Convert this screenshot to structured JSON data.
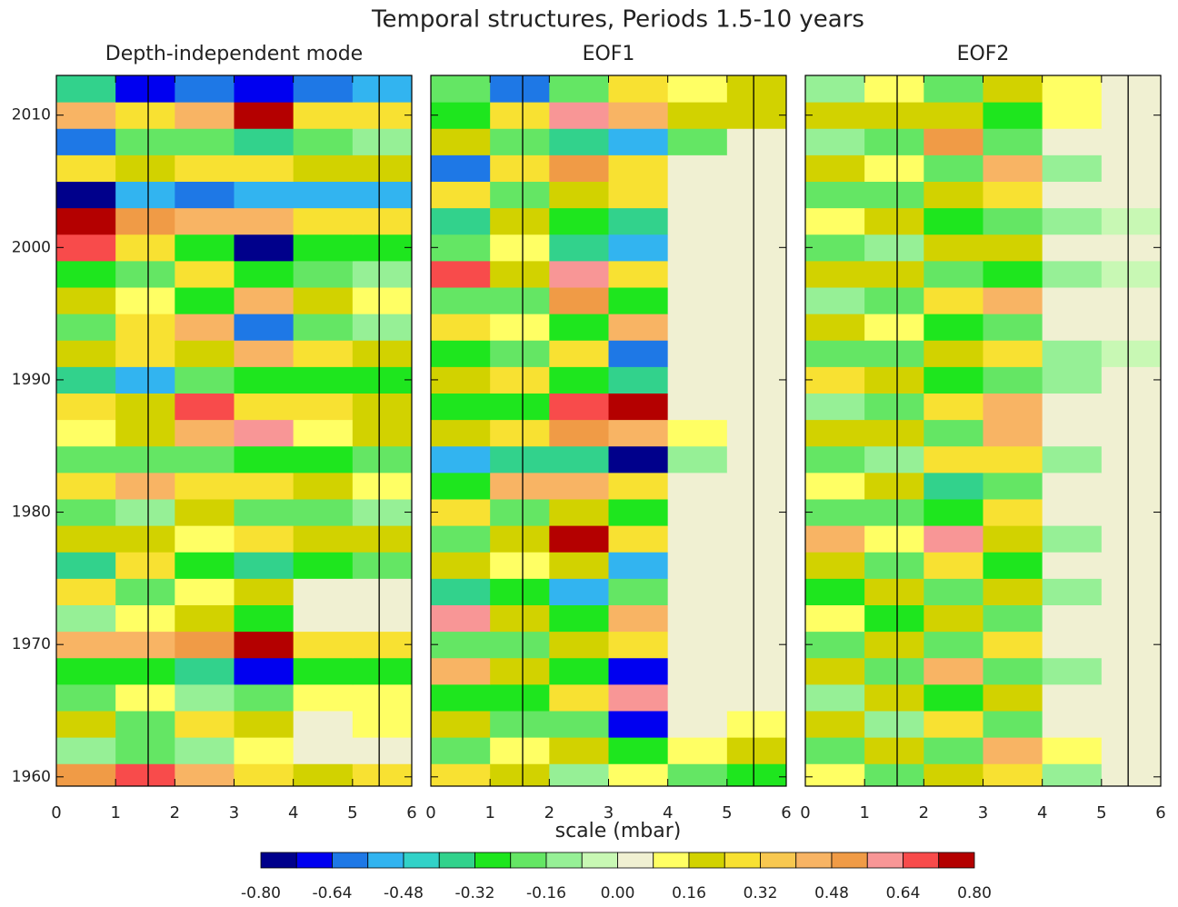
{
  "title": "Temporal structures, Periods 1.5-10 years",
  "xlabel": "scale (mbar)",
  "reference_lines": [
    1.55,
    5.45
  ],
  "colorbar": {
    "levels": [
      -0.8,
      -0.72,
      -0.64,
      -0.56,
      -0.48,
      -0.4,
      -0.32,
      -0.24,
      -0.16,
      -0.08,
      0,
      0.08,
      0.16,
      0.24,
      0.32,
      0.4,
      0.48,
      0.56,
      0.64,
      0.72,
      0.8
    ],
    "colors": [
      "#00008b",
      "#0000f0",
      "#1e78e6",
      "#32b4f0",
      "#32d2c8",
      "#32d28c",
      "#1ee61e",
      "#64e664",
      "#96f096",
      "#c8f8b4",
      "#f0f0d2",
      "#ffff64",
      "#d2d200",
      "#f8e132",
      "#f8c850",
      "#f8b464",
      "#f09b46",
      "#f89696",
      "#f84b4b",
      "#b40000"
    ],
    "ticks": [
      {
        "value": -0.8,
        "label": "-0.80"
      },
      {
        "value": -0.64,
        "label": "-0.64"
      },
      {
        "value": -0.48,
        "label": "-0.48"
      },
      {
        "value": -0.32,
        "label": "-0.32"
      },
      {
        "value": -0.16,
        "label": "-0.16"
      },
      {
        "value": 0,
        "label": "0.00"
      },
      {
        "value": 0.16,
        "label": "0.16"
      },
      {
        "value": 0.32,
        "label": "0.32"
      },
      {
        "value": 0.48,
        "label": "0.48"
      },
      {
        "value": 0.64,
        "label": "0.64"
      },
      {
        "value": 0.8,
        "label": "0.80"
      }
    ]
  },
  "chart_data": [
    {
      "type": "heatmap",
      "title": "Depth-independent mode",
      "xlim": [
        0,
        6
      ],
      "ylim": [
        1959.3,
        2013
      ],
      "xticks": [
        0,
        1,
        2,
        3,
        4,
        5,
        6
      ],
      "yticks": [
        1960,
        1970,
        1980,
        1990,
        2000,
        2010
      ],
      "show_yticklabels": true,
      "x": [
        0.5,
        1.5,
        2.5,
        3.5,
        4.5,
        5.5
      ],
      "y": [
        1960,
        1962,
        1964,
        1966,
        1968,
        1970,
        1972,
        1974,
        1976,
        1978,
        1980,
        1982,
        1984,
        1986,
        1988,
        1990,
        1992,
        1994,
        1996,
        1998,
        2000,
        2002,
        2004,
        2006,
        2008,
        2010,
        2012
      ],
      "z": [
        [
          0.5,
          0.7,
          0.4,
          0.3,
          0.2,
          0.3
        ],
        [
          -0.1,
          -0.2,
          -0.1,
          0.1,
          0.05,
          0.05
        ],
        [
          0.2,
          -0.2,
          0.3,
          0.2,
          0.05,
          0.1
        ],
        [
          -0.2,
          0.1,
          -0.1,
          -0.2,
          0.1,
          0.1
        ],
        [
          -0.3,
          -0.3,
          -0.4,
          -0.7,
          -0.3,
          -0.3
        ],
        [
          0.4,
          0.4,
          0.5,
          0.75,
          0.3,
          0.3
        ],
        [
          -0.1,
          0.1,
          0.2,
          -0.3,
          0.05,
          0.05
        ],
        [
          0.3,
          -0.2,
          0.1,
          0.2,
          0.05,
          0.05
        ],
        [
          -0.4,
          0.3,
          -0.3,
          -0.4,
          -0.3,
          -0.2
        ],
        [
          0.2,
          0.2,
          0.1,
          0.3,
          0.2,
          0.2
        ],
        [
          -0.2,
          -0.1,
          0.2,
          -0.2,
          -0.2,
          -0.15
        ],
        [
          0.3,
          0.4,
          0.3,
          0.3,
          0.2,
          0.1
        ],
        [
          -0.2,
          -0.2,
          -0.2,
          -0.3,
          -0.3,
          -0.2
        ],
        [
          0.1,
          0.2,
          0.4,
          0.6,
          0.1,
          0.2
        ],
        [
          0.3,
          0.2,
          0.65,
          0.3,
          0.3,
          0.2
        ],
        [
          -0.4,
          -0.5,
          -0.2,
          -0.3,
          -0.3,
          -0.3
        ],
        [
          0.2,
          0.3,
          0.2,
          0.4,
          0.3,
          0.2
        ],
        [
          -0.2,
          0.3,
          0.4,
          -0.6,
          -0.2,
          -0.1
        ],
        [
          0.2,
          0.1,
          -0.3,
          0.4,
          0.2,
          0.1
        ],
        [
          -0.3,
          -0.2,
          0.3,
          -0.3,
          -0.2,
          -0.1
        ],
        [
          0.7,
          0.3,
          -0.3,
          -0.75,
          -0.3,
          -0.3
        ],
        [
          0.75,
          0.5,
          0.4,
          0.4,
          0.3,
          0.3
        ],
        [
          -0.75,
          -0.5,
          -0.6,
          -0.5,
          -0.55,
          -0.5
        ],
        [
          0.3,
          0.2,
          0.3,
          0.3,
          0.2,
          0.2
        ],
        [
          -0.6,
          -0.2,
          -0.2,
          -0.4,
          -0.2,
          -0.1
        ],
        [
          0.4,
          0.3,
          0.4,
          0.85,
          0.3,
          0.3
        ],
        [
          -0.4,
          -0.7,
          -0.6,
          -0.7,
          -0.6,
          -0.5
        ]
      ]
    },
    {
      "type": "heatmap",
      "title": "EOF1",
      "xlim": [
        0,
        6
      ],
      "ylim": [
        1959.3,
        2013
      ],
      "xticks": [
        0,
        1,
        2,
        3,
        4,
        5,
        6
      ],
      "yticks": [
        1960,
        1970,
        1980,
        1990,
        2000,
        2010
      ],
      "show_yticklabels": false,
      "x": [
        0.5,
        1.5,
        2.5,
        3.5,
        4.5,
        5.5
      ],
      "y": [
        1960,
        1962,
        1964,
        1966,
        1968,
        1970,
        1972,
        1974,
        1976,
        1978,
        1980,
        1982,
        1984,
        1986,
        1988,
        1990,
        1992,
        1994,
        1996,
        1998,
        2000,
        2002,
        2004,
        2006,
        2008,
        2010,
        2012
      ],
      "z": [
        [
          0.3,
          0.2,
          -0.1,
          0.1,
          -0.2,
          -0.3
        ],
        [
          -0.2,
          0.1,
          0.2,
          -0.3,
          0.1,
          0.2
        ],
        [
          0.2,
          -0.2,
          -0.2,
          -0.65,
          0.05,
          0.1
        ],
        [
          -0.3,
          -0.3,
          0.3,
          0.6,
          0.05,
          0.05
        ],
        [
          0.4,
          0.2,
          -0.3,
          -0.7,
          0.05,
          0.05
        ],
        [
          -0.2,
          -0.2,
          0.2,
          0.3,
          0.05,
          0.05
        ],
        [
          0.6,
          0.2,
          -0.3,
          0.4,
          0.05,
          0.05
        ],
        [
          -0.4,
          -0.3,
          -0.5,
          -0.2,
          0.05,
          0.05
        ],
        [
          0.2,
          0.1,
          0.2,
          -0.5,
          0.05,
          0.05
        ],
        [
          -0.2,
          0.2,
          0.75,
          0.3,
          0.05,
          0.05
        ],
        [
          0.3,
          -0.2,
          0.2,
          -0.3,
          0.05,
          0.05
        ],
        [
          -0.3,
          0.4,
          0.4,
          0.3,
          0.05,
          0.05
        ],
        [
          -0.5,
          -0.4,
          -0.4,
          -0.8,
          -0.1,
          0.05
        ],
        [
          0.2,
          0.3,
          0.5,
          0.4,
          0.1,
          0.05
        ],
        [
          -0.3,
          -0.3,
          0.7,
          0.8,
          0.05,
          0.05
        ],
        [
          0.2,
          0.3,
          -0.3,
          -0.4,
          0.05,
          0.05
        ],
        [
          -0.3,
          -0.2,
          0.3,
          -0.6,
          0.05,
          0.05
        ],
        [
          0.3,
          0.1,
          -0.3,
          0.4,
          0.05,
          0.05
        ],
        [
          -0.2,
          -0.2,
          0.5,
          -0.3,
          0.05,
          0.05
        ],
        [
          0.7,
          0.2,
          0.6,
          0.3,
          0.05,
          0.05
        ],
        [
          -0.2,
          0.1,
          -0.4,
          -0.5,
          0.05,
          0.05
        ],
        [
          -0.4,
          0.2,
          -0.3,
          -0.4,
          0.05,
          0.05
        ],
        [
          0.3,
          -0.2,
          0.2,
          0.3,
          0.05,
          0.05
        ],
        [
          -0.6,
          0.3,
          0.5,
          0.3,
          0.05,
          0.05
        ],
        [
          0.2,
          -0.2,
          -0.4,
          -0.5,
          -0.2,
          0.05
        ],
        [
          -0.3,
          0.3,
          0.6,
          0.4,
          0.2,
          0.2
        ],
        [
          -0.2,
          -0.6,
          -0.2,
          0.3,
          0.1,
          0.2
        ]
      ]
    },
    {
      "type": "heatmap",
      "title": "EOF2",
      "xlim": [
        0,
        6
      ],
      "ylim": [
        1959.3,
        2013
      ],
      "xticks": [
        0,
        1,
        2,
        3,
        4,
        5,
        6
      ],
      "yticks": [
        1960,
        1970,
        1980,
        1990,
        2000,
        2010
      ],
      "show_yticklabels": false,
      "x": [
        0.5,
        1.5,
        2.5,
        3.5,
        4.5,
        5.5
      ],
      "y": [
        1960,
        1962,
        1964,
        1966,
        1968,
        1970,
        1972,
        1974,
        1976,
        1978,
        1980,
        1982,
        1984,
        1986,
        1988,
        1990,
        1992,
        1994,
        1996,
        1998,
        2000,
        2002,
        2004,
        2006,
        2008,
        2010,
        2012
      ],
      "z": [
        [
          0.1,
          -0.2,
          0.2,
          0.3,
          -0.1,
          0.05
        ],
        [
          -0.2,
          0.2,
          -0.2,
          0.4,
          0.1,
          0.05
        ],
        [
          0.2,
          -0.1,
          0.3,
          -0.2,
          0.05,
          0.05
        ],
        [
          -0.1,
          0.2,
          -0.3,
          0.2,
          0.05,
          0.05
        ],
        [
          0.2,
          -0.2,
          0.4,
          -0.2,
          -0.1,
          0.05
        ],
        [
          -0.2,
          0.2,
          -0.2,
          0.3,
          0.05,
          0.05
        ],
        [
          0.1,
          -0.3,
          0.2,
          -0.2,
          0.05,
          0.05
        ],
        [
          -0.3,
          0.2,
          -0.2,
          0.2,
          -0.1,
          0.05
        ],
        [
          0.2,
          -0.2,
          0.3,
          -0.3,
          0.05,
          0.05
        ],
        [
          0.4,
          0.1,
          0.6,
          0.2,
          -0.1,
          0.05
        ],
        [
          -0.2,
          -0.2,
          -0.3,
          0.3,
          0.05,
          0.05
        ],
        [
          0.1,
          0.2,
          -0.4,
          -0.2,
          0.05,
          0.05
        ],
        [
          -0.2,
          -0.1,
          0.3,
          0.3,
          -0.1,
          0.05
        ],
        [
          0.2,
          0.2,
          -0.2,
          0.4,
          0.05,
          0.05
        ],
        [
          -0.1,
          -0.2,
          0.3,
          0.4,
          0.05,
          0.05
        ],
        [
          0.3,
          0.2,
          -0.3,
          -0.2,
          -0.1,
          0.05
        ],
        [
          -0.2,
          -0.2,
          0.2,
          0.3,
          -0.1,
          -0.05
        ],
        [
          0.2,
          0.1,
          -0.3,
          -0.2,
          0.05,
          0.05
        ],
        [
          -0.1,
          -0.2,
          0.3,
          0.4,
          0.05,
          0.05
        ],
        [
          0.2,
          0.2,
          -0.2,
          -0.3,
          -0.1,
          -0.05
        ],
        [
          -0.2,
          -0.1,
          0.2,
          0.2,
          0.05,
          0.05
        ],
        [
          0.1,
          0.2,
          -0.3,
          -0.2,
          -0.1,
          -0.05
        ],
        [
          -0.2,
          -0.2,
          0.2,
          0.3,
          0.05,
          0.05
        ],
        [
          0.2,
          0.1,
          -0.2,
          0.4,
          -0.1,
          0.05
        ],
        [
          -0.1,
          -0.2,
          0.5,
          -0.2,
          0.05,
          0.05
        ],
        [
          0.2,
          0.2,
          0.2,
          -0.3,
          0.1,
          0.05
        ],
        [
          -0.1,
          0.1,
          -0.2,
          0.2,
          0.1,
          0.05
        ]
      ]
    }
  ]
}
